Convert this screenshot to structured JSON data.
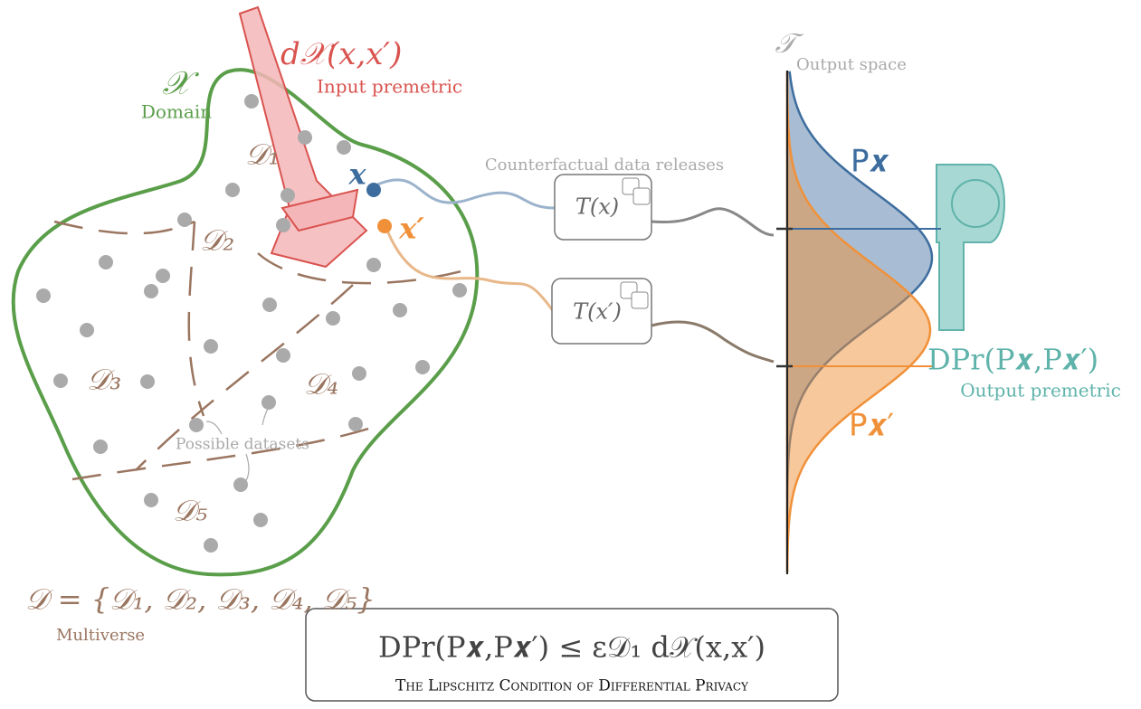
{
  "domain": {
    "symbol": "𝒳",
    "label": "Domain"
  },
  "input_premetric": {
    "formula": "d𝒳(x,x′)",
    "label": "Input premetric"
  },
  "partitions": [
    "𝒟₁",
    "𝒟₂",
    "𝒟₃",
    "𝒟₄",
    "𝒟₅"
  ],
  "points": {
    "x": "x",
    "x_prime": "x′"
  },
  "releases": {
    "label": "Counterfactual data releases",
    "items": [
      "T(x)",
      "T(x′)"
    ]
  },
  "output_space": {
    "symbol": "𝒯",
    "label": "Output space"
  },
  "distributions": [
    "P𝒙",
    "P𝒙′"
  ],
  "output_premetric": {
    "formula": "DPr(P𝒙,P𝒙′)",
    "label": "Output premetric"
  },
  "annotation": "Possible datasets",
  "multiverse": {
    "formula": "𝒟 = {𝒟₁, 𝒟₂, 𝒟₃, 𝒟₄, 𝒟₅}",
    "label": "Multiverse"
  },
  "condition": {
    "formula": "DPr(P𝒙,P𝒙′) ≤ ε𝒟₁ d𝒳(x,x′)",
    "caption": "The Lipschitz Condition of Differential Privacy"
  }
}
